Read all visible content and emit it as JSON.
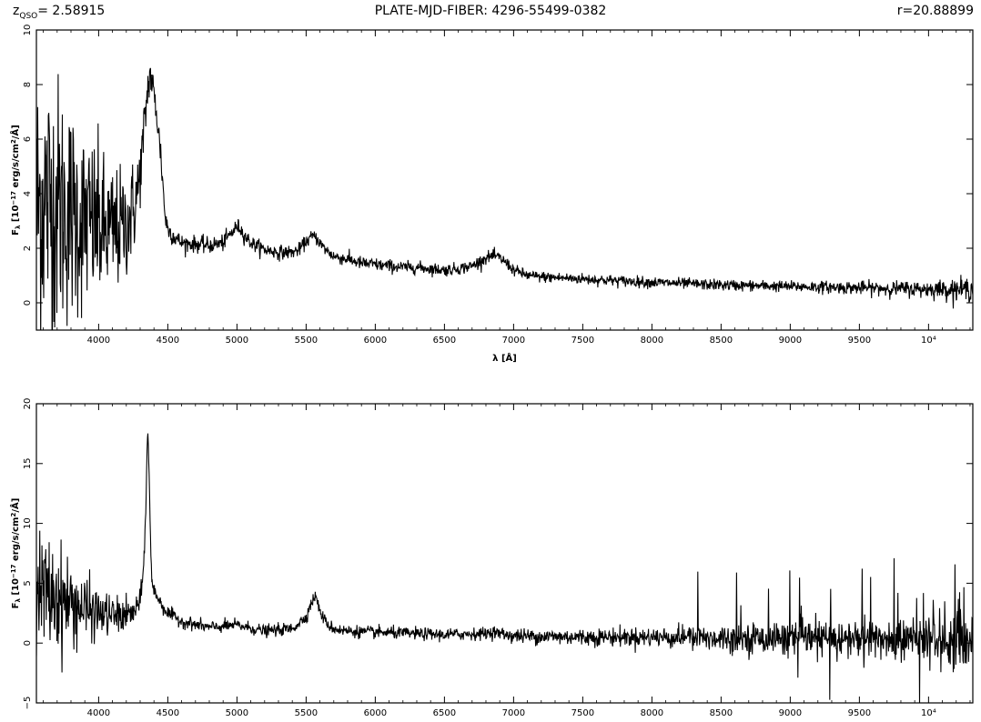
{
  "header": {
    "redshift_label": "z",
    "redshift_sub": "QSO",
    "redshift_value": "= 2.58915",
    "plate_mjd_fiber": "PLATE-MJD-FIBER: 4296-55499-0382",
    "r_mag": "r=20.88899"
  },
  "chart_data": [
    {
      "type": "line",
      "title": "",
      "xlabel": "λ [Å]",
      "ylabel": "F_λ [10^-17 erg/s/cm^2/Å]",
      "xlim": [
        3550,
        10320
      ],
      "ylim": [
        -1,
        10
      ],
      "x_ticks": [
        4000,
        4500,
        5000,
        5500,
        6000,
        6500,
        7000,
        7500,
        8000,
        8500,
        9000,
        9500,
        10000
      ],
      "x_tick_labels": [
        "4000",
        "4500",
        "5000",
        "5500",
        "6000",
        "6500",
        "7000",
        "7500",
        "8000",
        "8500",
        "9000",
        "9500",
        "10⁴"
      ],
      "y_ticks": [
        0,
        2,
        4,
        6,
        8,
        10
      ],
      "y_tick_labels": [
        "0",
        "2",
        "4",
        "6",
        "8",
        "10"
      ],
      "series": [
        {
          "x": [
            3550,
            3600,
            3650,
            3700,
            3750,
            3800,
            3850,
            3900,
            3950,
            4000,
            4050,
            4100,
            4150,
            4200,
            4250,
            4280,
            4300,
            4320,
            4350,
            4370,
            4385,
            4400,
            4420,
            4450,
            4480,
            4500,
            4550,
            4600,
            4700,
            4800,
            4900,
            4950,
            5000,
            5020,
            5050,
            5100,
            5200,
            5300,
            5400,
            5450,
            5500,
            5550,
            5580,
            5620,
            5700,
            5800,
            5900,
            6000,
            6100,
            6200,
            6300,
            6400,
            6500,
            6600,
            6700,
            6800,
            6850,
            6900,
            6950,
            7000,
            7100,
            7200,
            7400,
            7600,
            7800,
            8000,
            8500,
            9000,
            9500,
            10000,
            10320
          ],
          "y": [
            3.5,
            3.8,
            3.7,
            3.6,
            3.4,
            3.3,
            3.1,
            3.0,
            2.9,
            2.8,
            2.6,
            2.6,
            2.7,
            2.9,
            3.4,
            4.0,
            4.8,
            5.8,
            7.6,
            8.4,
            8.1,
            7.6,
            6.9,
            5.4,
            3.2,
            2.7,
            2.4,
            2.2,
            2.15,
            2.1,
            2.2,
            2.5,
            2.8,
            2.75,
            2.5,
            2.2,
            1.95,
            1.85,
            1.85,
            1.95,
            2.25,
            2.45,
            2.35,
            2.05,
            1.7,
            1.6,
            1.45,
            1.4,
            1.35,
            1.3,
            1.3,
            1.25,
            1.2,
            1.25,
            1.35,
            1.65,
            1.72,
            1.65,
            1.45,
            1.2,
            1.0,
            0.95,
            0.9,
            0.85,
            0.8,
            0.75,
            0.65,
            0.6,
            0.55,
            0.5,
            0.5
          ],
          "noise_sigma": [
            2.6,
            2.6,
            2.5,
            2.4,
            2.2,
            2.0,
            1.8,
            1.7,
            1.6,
            1.5,
            1.3,
            1.2,
            1.1,
            1.0,
            0.9,
            0.8,
            0.6,
            0.6,
            0.45,
            0.4,
            0.4,
            0.35,
            0.3,
            0.3,
            0.25,
            0.2,
            0.18,
            0.15,
            0.15,
            0.15,
            0.15,
            0.15,
            0.14,
            0.14,
            0.14,
            0.13,
            0.13,
            0.13,
            0.12,
            0.12,
            0.12,
            0.12,
            0.12,
            0.12,
            0.12,
            0.12,
            0.12,
            0.12,
            0.12,
            0.11,
            0.11,
            0.11,
            0.11,
            0.11,
            0.11,
            0.11,
            0.11,
            0.11,
            0.11,
            0.1,
            0.1,
            0.1,
            0.1,
            0.1,
            0.1,
            0.1,
            0.1,
            0.1,
            0.12,
            0.15,
            0.22
          ]
        }
      ]
    },
    {
      "type": "line",
      "title": "",
      "xlabel": "",
      "ylabel": "F_λ [10^-17 erg/s/cm^2/Å]",
      "xlim": [
        3550,
        10320
      ],
      "ylim": [
        -5,
        20
      ],
      "x_ticks": [
        4000,
        4500,
        5000,
        5500,
        6000,
        6500,
        7000,
        7500,
        8000,
        8500,
        9000,
        9500,
        10000
      ],
      "x_tick_labels": [
        "4000",
        "4500",
        "5000",
        "5500",
        "6000",
        "6500",
        "7000",
        "7500",
        "8000",
        "8500",
        "9000",
        "9500",
        "10⁴"
      ],
      "y_ticks": [
        -5,
        0,
        5,
        10,
        15,
        20
      ],
      "y_tick_labels": [
        "−5",
        "0",
        "5",
        "10",
        "15",
        "20"
      ],
      "series": [
        {
          "x": [
            3550,
            3600,
            3650,
            3700,
            3750,
            3800,
            3900,
            4000,
            4100,
            4200,
            4250,
            4300,
            4320,
            4340,
            4355,
            4365,
            4375,
            4385,
            4400,
            4420,
            4450,
            4500,
            4600,
            4800,
            5000,
            5200,
            5400,
            5500,
            5530,
            5560,
            5580,
            5600,
            5650,
            5700,
            5800,
            6000,
            6500,
            6800,
            6850,
            6900,
            7000,
            7500,
            8000,
            8500,
            9000,
            9500,
            10000,
            10320
          ],
          "y": [
            4.0,
            4.2,
            4.0,
            3.8,
            3.5,
            3.3,
            2.8,
            2.5,
            2.3,
            2.3,
            2.5,
            3.4,
            5.5,
            10.5,
            18.5,
            14.0,
            8.5,
            5.0,
            4.4,
            4.0,
            3.3,
            2.5,
            1.8,
            1.3,
            1.5,
            1.0,
            1.2,
            2.2,
            3.1,
            3.9,
            3.6,
            2.6,
            1.6,
            1.2,
            1.0,
            0.9,
            0.7,
            0.8,
            0.95,
            0.8,
            0.6,
            0.5,
            0.5,
            0.45,
            0.4,
            0.35,
            0.3,
            0.3
          ],
          "noise_sigma": [
            2.4,
            2.4,
            2.3,
            2.2,
            2.0,
            1.8,
            1.4,
            1.0,
            0.8,
            0.7,
            0.6,
            0.5,
            0.4,
            0.3,
            0.3,
            0.3,
            0.3,
            0.3,
            0.3,
            0.3,
            0.3,
            0.3,
            0.25,
            0.25,
            0.25,
            0.25,
            0.25,
            0.25,
            0.25,
            0.25,
            0.25,
            0.25,
            0.25,
            0.25,
            0.25,
            0.25,
            0.25,
            0.25,
            0.25,
            0.25,
            0.3,
            0.35,
            0.4,
            0.55,
            0.7,
            0.8,
            1.0,
            1.4
          ]
        }
      ]
    }
  ]
}
